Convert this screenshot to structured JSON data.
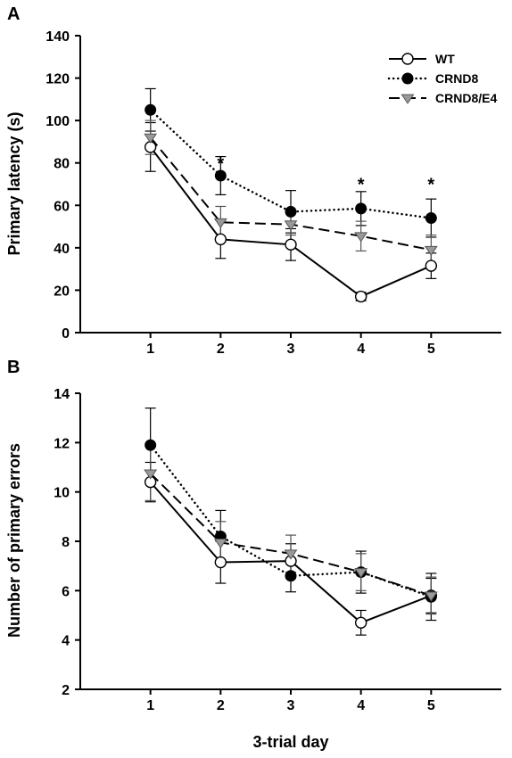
{
  "chart_data": [
    {
      "type": "line",
      "panel_label": "A",
      "ylabel": "Primary latency (s)",
      "xlabel": "",
      "x": [
        1,
        2,
        3,
        4,
        5
      ],
      "xlim": [
        0,
        6
      ],
      "ylim": [
        0,
        140
      ],
      "y_ticks": [
        0,
        20,
        40,
        60,
        80,
        100,
        120,
        140
      ],
      "x_ticks": [
        1,
        2,
        3,
        4,
        5
      ],
      "legend_position": "top-right",
      "series": [
        {
          "name": "WT",
          "style": "solid",
          "marker": "circle-open",
          "color": "#000000",
          "values": [
            87.5,
            44,
            41.5,
            17,
            31.5
          ],
          "errors": [
            11.5,
            9,
            7.5,
            2,
            6
          ]
        },
        {
          "name": "CRND8",
          "style": "dotted",
          "marker": "circle-filled",
          "color": "#000000",
          "values": [
            105,
            74,
            57,
            58.5,
            54
          ],
          "errors": [
            10,
            9,
            10,
            8,
            9
          ]
        },
        {
          "name": "CRND8/E4",
          "style": "dashed",
          "marker": "triangle-gray",
          "color": "#8c8c8c",
          "values": [
            92,
            52,
            51,
            45.5,
            39
          ],
          "errors": [
            8,
            7.5,
            5,
            7,
            7
          ]
        }
      ],
      "annotations": [
        {
          "x": 2,
          "y": 82,
          "text": "*"
        },
        {
          "x": 4,
          "y": 72,
          "text": "*"
        },
        {
          "x": 5,
          "y": 72,
          "text": "*"
        }
      ]
    },
    {
      "type": "line",
      "panel_label": "B",
      "ylabel": "Number of primary errors",
      "xlabel": "3-trial day",
      "x": [
        1,
        2,
        3,
        4,
        5
      ],
      "xlim": [
        0,
        6
      ],
      "ylim": [
        2,
        14
      ],
      "y_ticks": [
        2,
        4,
        6,
        8,
        10,
        12,
        14
      ],
      "x_ticks": [
        1,
        2,
        3,
        4,
        5
      ],
      "series": [
        {
          "name": "WT",
          "style": "solid",
          "marker": "circle-open",
          "color": "#000000",
          "values": [
            10.4,
            7.15,
            7.2,
            4.7,
            5.8
          ],
          "errors": [
            0.8,
            0.85,
            0.7,
            0.5,
            0.7
          ]
        },
        {
          "name": "CRND8",
          "style": "dotted",
          "marker": "circle-filled",
          "color": "#000000",
          "values": [
            11.9,
            8.2,
            6.6,
            6.75,
            5.75
          ],
          "errors": [
            1.5,
            1.05,
            0.65,
            0.85,
            0.95
          ]
        },
        {
          "name": "CRND8/E4",
          "style": "dashed",
          "marker": "triangle-gray",
          "color": "#8c8c8c",
          "values": [
            10.75,
            7.95,
            7.5,
            6.75,
            5.8
          ],
          "errors": [
            1.1,
            0.85,
            0.75,
            0.75,
            0.75
          ]
        }
      ]
    }
  ]
}
